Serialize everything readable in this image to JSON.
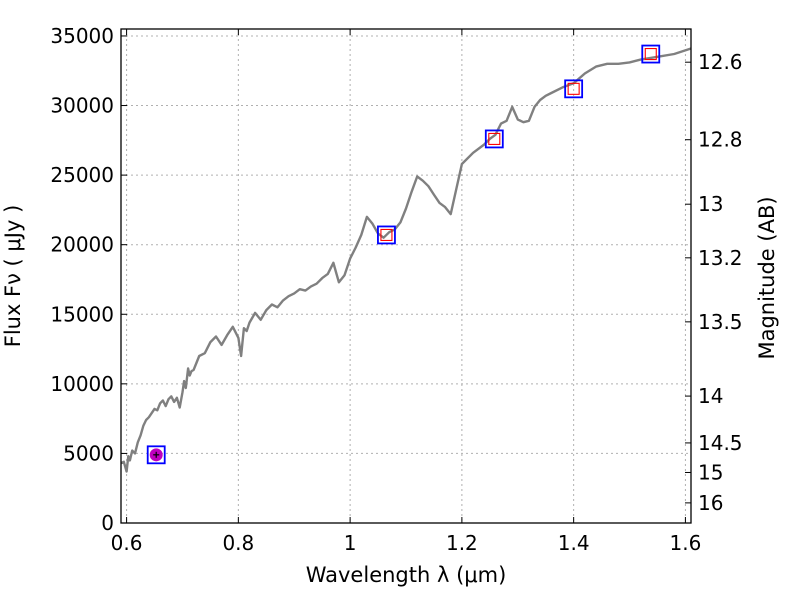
{
  "chart_data": {
    "type": "line",
    "xlabel": "Wavelength  λ (μm)",
    "ylabel": "Flux  Fν  ( μJy )",
    "y2label": "Magnitude (AB)",
    "xlim": [
      0.59,
      1.61
    ],
    "ylim": [
      0,
      35500
    ],
    "grid": true,
    "x_ticks": [
      {
        "value": 0.6,
        "label": "0.6"
      },
      {
        "value": 0.8,
        "label": "0.8"
      },
      {
        "value": 1.0,
        "label": "1"
      },
      {
        "value": 1.2,
        "label": "1.2"
      },
      {
        "value": 1.4,
        "label": "1.4"
      },
      {
        "value": 1.6,
        "label": "1.6"
      }
    ],
    "y_ticks": [
      {
        "value": 0,
        "label": "0"
      },
      {
        "value": 5000,
        "label": "5000"
      },
      {
        "value": 10000,
        "label": "10000"
      },
      {
        "value": 15000,
        "label": "15000"
      },
      {
        "value": 20000,
        "label": "20000"
      },
      {
        "value": 25000,
        "label": "25000"
      },
      {
        "value": 30000,
        "label": "30000"
      },
      {
        "value": 35000,
        "label": "35000"
      }
    ],
    "y2_ticks": [
      {
        "value": 12.6,
        "label": "12.6"
      },
      {
        "value": 12.8,
        "label": "12.8"
      },
      {
        "value": 13.0,
        "label": "13"
      },
      {
        "value": 13.2,
        "label": "13.2"
      },
      {
        "value": 13.5,
        "label": "13.5"
      },
      {
        "value": 14.0,
        "label": "14"
      },
      {
        "value": 14.5,
        "label": "14.5"
      },
      {
        "value": 15.0,
        "label": "15"
      },
      {
        "value": 16.0,
        "label": "16"
      }
    ],
    "series": [
      {
        "name": "spectrum",
        "color": "#808080",
        "x": [
          0.59,
          0.595,
          0.6,
          0.603,
          0.606,
          0.61,
          0.615,
          0.62,
          0.625,
          0.63,
          0.635,
          0.64,
          0.645,
          0.65,
          0.655,
          0.66,
          0.665,
          0.67,
          0.675,
          0.68,
          0.685,
          0.69,
          0.695,
          0.7,
          0.703,
          0.706,
          0.71,
          0.713,
          0.716,
          0.72,
          0.725,
          0.73,
          0.74,
          0.75,
          0.76,
          0.77,
          0.78,
          0.79,
          0.8,
          0.805,
          0.81,
          0.815,
          0.82,
          0.83,
          0.84,
          0.85,
          0.86,
          0.87,
          0.88,
          0.89,
          0.9,
          0.91,
          0.92,
          0.93,
          0.94,
          0.95,
          0.96,
          0.97,
          0.975,
          0.98,
          0.99,
          1.0,
          1.01,
          1.02,
          1.03,
          1.04,
          1.05,
          1.06,
          1.07,
          1.08,
          1.09,
          1.1,
          1.11,
          1.12,
          1.13,
          1.14,
          1.15,
          1.16,
          1.17,
          1.18,
          1.19,
          1.2,
          1.22,
          1.24,
          1.25,
          1.26,
          1.27,
          1.28,
          1.29,
          1.3,
          1.31,
          1.32,
          1.33,
          1.34,
          1.35,
          1.36,
          1.38,
          1.4,
          1.42,
          1.44,
          1.46,
          1.48,
          1.5,
          1.52,
          1.55,
          1.58,
          1.61
        ],
        "y": [
          4300,
          4400,
          3700,
          4800,
          4500,
          5200,
          5000,
          5800,
          6300,
          7000,
          7400,
          7600,
          7900,
          8200,
          8100,
          8600,
          8800,
          8400,
          8900,
          9100,
          8700,
          9000,
          8300,
          9400,
          10200,
          9700,
          11100,
          10600,
          10900,
          11000,
          11500,
          12000,
          12200,
          13000,
          13400,
          12800,
          13500,
          14100,
          13300,
          12000,
          14000,
          13800,
          14400,
          15100,
          14600,
          15300,
          15700,
          15500,
          16000,
          16300,
          16500,
          16800,
          16700,
          17000,
          17200,
          17600,
          17900,
          18700,
          18000,
          17300,
          17800,
          19000,
          19800,
          20700,
          22000,
          21500,
          20800,
          20500,
          20900,
          21100,
          21600,
          22600,
          23800,
          24900,
          24600,
          24200,
          23600,
          23000,
          22700,
          22200,
          24000,
          25800,
          26600,
          27200,
          27600,
          27900,
          28700,
          28900,
          29900,
          29000,
          28800,
          28900,
          29900,
          30400,
          30700,
          30900,
          31300,
          31600,
          32300,
          32800,
          33000,
          33000,
          33100,
          33300,
          33500,
          33700,
          34100
        ]
      }
    ],
    "photometry": [
      {
        "x": 0.653,
        "y": 4900,
        "style": "filled-circle"
      },
      {
        "x": 1.065,
        "y": 20700,
        "style": "open-square"
      },
      {
        "x": 1.258,
        "y": 27600,
        "style": "open-square"
      },
      {
        "x": 1.4,
        "y": 31200,
        "style": "open-square"
      },
      {
        "x": 1.538,
        "y": 33700,
        "style": "open-square"
      }
    ],
    "colors": {
      "line": "#808080",
      "outer_marker": "#0000ff",
      "inner_marker": "#ff0000",
      "dot": "#bf00bf",
      "grid": "#b0b0b0"
    }
  }
}
